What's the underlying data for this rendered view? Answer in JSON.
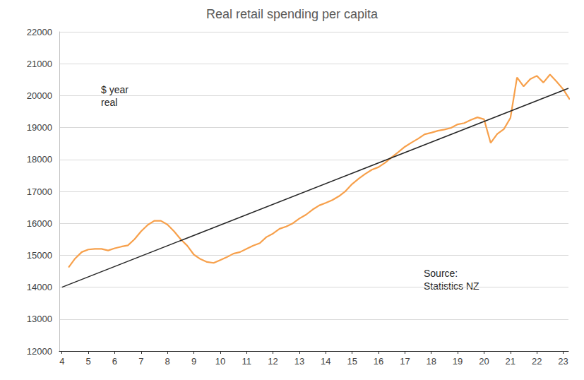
{
  "chart_data": {
    "type": "line",
    "title": "Real retail spending per capita",
    "annotations": [
      "$ year\nreal",
      "Source:\nStatistics NZ"
    ],
    "xlim": [
      3.9,
      23.2
    ],
    "xticks": [
      4,
      5,
      6,
      7,
      8,
      9,
      10,
      11,
      12,
      13,
      14,
      15,
      16,
      17,
      18,
      19,
      20,
      21,
      22,
      23
    ],
    "ylim": [
      12000,
      22000
    ],
    "yticks": [
      12000,
      13000,
      14000,
      15000,
      16000,
      17000,
      18000,
      19000,
      20000,
      21000,
      22000
    ],
    "grid": true,
    "series": [
      {
        "color": "#f7a04b",
        "line_style": "solid",
        "x": [
          4.25,
          4.5,
          4.75,
          5.0,
          5.25,
          5.5,
          5.75,
          6.0,
          6.25,
          6.5,
          6.75,
          7.0,
          7.25,
          7.5,
          7.75,
          8.0,
          8.25,
          8.5,
          8.75,
          9.0,
          9.25,
          9.5,
          9.75,
          10.0,
          10.25,
          10.5,
          10.75,
          11.0,
          11.25,
          11.5,
          11.75,
          12.0,
          12.25,
          12.5,
          12.75,
          13.0,
          13.25,
          13.5,
          13.75,
          14.0,
          14.25,
          14.5,
          14.75,
          15.0,
          15.25,
          15.5,
          15.75,
          16.0,
          16.25,
          16.5,
          16.75,
          17.0,
          17.25,
          17.5,
          17.75,
          18.0,
          18.25,
          18.5,
          18.75,
          19.0,
          19.25,
          19.5,
          19.75,
          20.0,
          20.25,
          20.5,
          20.75,
          21.0,
          21.25,
          21.5,
          21.75,
          22.0,
          22.25,
          22.5,
          22.75,
          23.0,
          23.25
        ],
        "values": [
          14620,
          14900,
          15100,
          15180,
          15200,
          15200,
          15150,
          15220,
          15270,
          15310,
          15500,
          15750,
          15950,
          16080,
          16080,
          15960,
          15750,
          15500,
          15300,
          15020,
          14880,
          14790,
          14760,
          14850,
          14940,
          15050,
          15100,
          15200,
          15300,
          15380,
          15570,
          15680,
          15830,
          15900,
          16000,
          16150,
          16270,
          16430,
          16560,
          16640,
          16730,
          16850,
          17010,
          17230,
          17400,
          17550,
          17680,
          17760,
          17900,
          18070,
          18230,
          18400,
          18530,
          18650,
          18790,
          18840,
          18900,
          18940,
          18990,
          19100,
          19140,
          19240,
          19320,
          19260,
          18520,
          18800,
          18950,
          19300,
          20570,
          20290,
          20520,
          20620,
          20410,
          20660,
          20440,
          20200,
          19880
        ]
      },
      {
        "color": "#262626",
        "line_style": "solid",
        "x": [
          4.0,
          23.2
        ],
        "values": [
          14000,
          20230
        ]
      }
    ]
  }
}
